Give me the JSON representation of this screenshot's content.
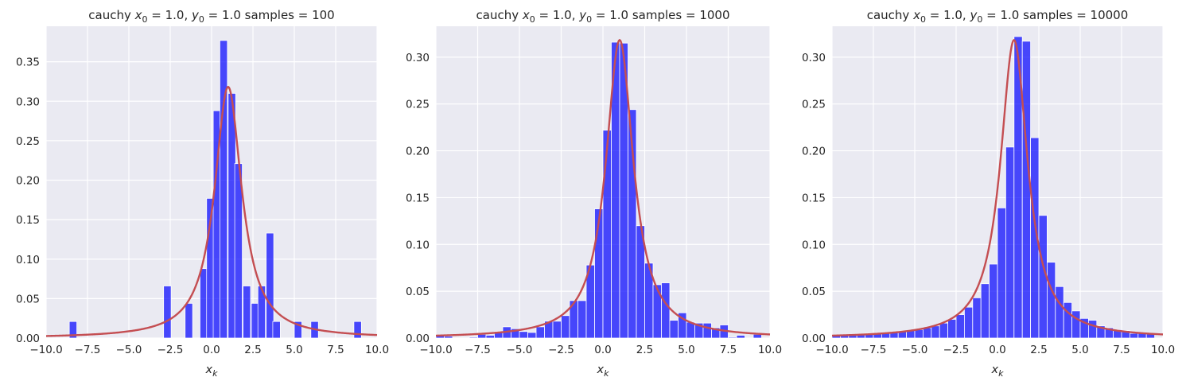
{
  "chart_data": [
    {
      "type": "bar",
      "title": "cauchy $x_0 = 1.0$, $y_0 = 1.0$  samples = 100",
      "title_parts": [
        "cauchy ",
        "x",
        "0",
        " = 1.0, ",
        "y",
        "0",
        " = 1.0  samples = 100"
      ],
      "xlabel": "x_k",
      "xlabel_parts": [
        "x",
        "k"
      ],
      "xlim": [
        -10,
        10
      ],
      "ylim": [
        0,
        0.395
      ],
      "xticks": [
        -10,
        -7.5,
        -5,
        -2.5,
        0,
        2.5,
        5,
        7.5,
        10
      ],
      "xtick_labels": [
        "−10.0",
        "−7.5",
        "−5.0",
        "−2.5",
        "0.0",
        "2.5",
        "5.0",
        "7.5",
        "10.0"
      ],
      "yticks": [
        0,
        0.05,
        0.1,
        0.15,
        0.2,
        0.25,
        0.3,
        0.35
      ],
      "ytick_labels": [
        "0.00",
        "0.05",
        "0.10",
        "0.15",
        "0.20",
        "0.25",
        "0.30",
        "0.35"
      ],
      "bar_width": 0.455,
      "bar_left": [
        -8.6,
        -2.9,
        -1.6,
        -0.7,
        -0.3,
        0.1,
        0.5,
        1.0,
        1.4,
        1.9,
        2.4,
        2.8,
        3.3,
        3.7,
        4.1,
        5.0,
        6.0,
        8.6
      ],
      "bar_values": [
        0.021,
        0.066,
        0.044,
        0.088,
        0.177,
        0.288,
        0.377,
        0.31,
        0.221,
        0.066,
        0.044,
        0.066,
        0.133,
        0.021,
        0.0,
        0.021,
        0.021,
        0.021
      ],
      "curve": {
        "type": "cauchy_pdf",
        "x0": 1.0,
        "gamma": 1.0,
        "color": "#c44e52"
      },
      "bar_color": "#0000ff"
    },
    {
      "type": "bar",
      "title": "cauchy $x_0 = 1.0$, $y_0 = 1.0$  samples = 1000",
      "title_parts": [
        "cauchy ",
        "x",
        "0",
        " = 1.0, ",
        "y",
        "0",
        " = 1.0  samples = 1000"
      ],
      "xlabel": "x_k",
      "xlabel_parts": [
        "x",
        "k"
      ],
      "xlim": [
        -10,
        10
      ],
      "ylim": [
        0,
        0.333
      ],
      "xticks": [
        -10,
        -7.5,
        -5,
        -2.5,
        0,
        2.5,
        5,
        7.5,
        10
      ],
      "xtick_labels": [
        "−10.0",
        "−7.5",
        "−5.0",
        "−2.5",
        "0.0",
        "2.5",
        "5.0",
        "7.5",
        "10.0"
      ],
      "yticks": [
        0,
        0.05,
        0.1,
        0.15,
        0.2,
        0.25,
        0.3
      ],
      "ytick_labels": [
        "0.00",
        "0.05",
        "0.10",
        "0.15",
        "0.20",
        "0.25",
        "0.30"
      ],
      "bar_width": 0.5,
      "bar_left": [
        -10.0,
        -9.5,
        -8.0,
        -7.5,
        -7.0,
        -6.5,
        -6.0,
        -5.5,
        -5.0,
        -4.5,
        -4.0,
        -3.5,
        -3.0,
        -2.5,
        -2.0,
        -1.5,
        -1.0,
        -0.5,
        0.0,
        0.5,
        1.0,
        1.5,
        2.0,
        2.5,
        3.0,
        3.5,
        4.0,
        4.5,
        5.0,
        5.5,
        6.0,
        6.5,
        7.0,
        7.5,
        8.0,
        9.0
      ],
      "bar_values": [
        0.003,
        0.002,
        0.001,
        0.004,
        0.003,
        0.007,
        0.012,
        0.01,
        0.007,
        0.006,
        0.012,
        0.018,
        0.018,
        0.024,
        0.04,
        0.04,
        0.078,
        0.138,
        0.222,
        0.316,
        0.315,
        0.244,
        0.12,
        0.08,
        0.057,
        0.059,
        0.019,
        0.027,
        0.017,
        0.016,
        0.016,
        0.011,
        0.014,
        0.001,
        0.003,
        0.004
      ],
      "curve": {
        "type": "cauchy_pdf",
        "x0": 1.0,
        "gamma": 1.0,
        "color": "#c44e52"
      },
      "bar_color": "#0000ff"
    },
    {
      "type": "bar",
      "title": "cauchy $x_0 = 1.0$, $y_0 = 1.0$  samples = 10000",
      "title_parts": [
        "cauchy ",
        "x",
        "0",
        " = 1.0, ",
        "y",
        "0",
        " = 1.0  samples = 10000"
      ],
      "xlabel": "x_k",
      "xlabel_parts": [
        "x",
        "k"
      ],
      "xlim": [
        -10,
        10
      ],
      "ylim": [
        0,
        0.333
      ],
      "xticks": [
        -10,
        -7.5,
        -5,
        -2.5,
        0,
        2.5,
        5,
        7.5,
        10
      ],
      "xtick_labels": [
        "−10.0",
        "−7.5",
        "−5.0",
        "−2.5",
        "0.0",
        "2.5",
        "5.0",
        "7.5",
        "10.0"
      ],
      "yticks": [
        0,
        0.05,
        0.1,
        0.15,
        0.2,
        0.25,
        0.3
      ],
      "ytick_labels": [
        "0.00",
        "0.05",
        "0.10",
        "0.15",
        "0.20",
        "0.25",
        "0.30"
      ],
      "bar_width": 0.5,
      "bar_left": [
        -10.0,
        -9.5,
        -9.0,
        -8.5,
        -8.0,
        -7.5,
        -7.0,
        -6.5,
        -6.0,
        -5.5,
        -5.0,
        -4.5,
        -4.0,
        -3.5,
        -3.0,
        -2.5,
        -2.0,
        -1.5,
        -1.0,
        -0.5,
        0.0,
        0.5,
        1.0,
        1.5,
        2.0,
        2.5,
        3.0,
        3.5,
        4.0,
        4.5,
        5.0,
        5.5,
        6.0,
        6.5,
        7.0,
        7.5,
        8.0,
        8.5,
        9.0
      ],
      "bar_values": [
        0.003,
        0.003,
        0.003,
        0.004,
        0.005,
        0.005,
        0.005,
        0.006,
        0.007,
        0.008,
        0.009,
        0.011,
        0.013,
        0.016,
        0.02,
        0.025,
        0.033,
        0.043,
        0.058,
        0.079,
        0.139,
        0.204,
        0.322,
        0.317,
        0.214,
        0.131,
        0.081,
        0.055,
        0.038,
        0.029,
        0.021,
        0.019,
        0.013,
        0.011,
        0.009,
        0.008,
        0.005,
        0.005,
        0.005
      ],
      "curve": {
        "type": "cauchy_pdf",
        "x0": 1.0,
        "gamma": 1.0,
        "color": "#c44e52"
      },
      "bar_color": "#0000ff"
    }
  ],
  "style": {
    "axes_background": "#eaeaf2",
    "grid_color": "#ffffff",
    "text_color": "#262626"
  }
}
